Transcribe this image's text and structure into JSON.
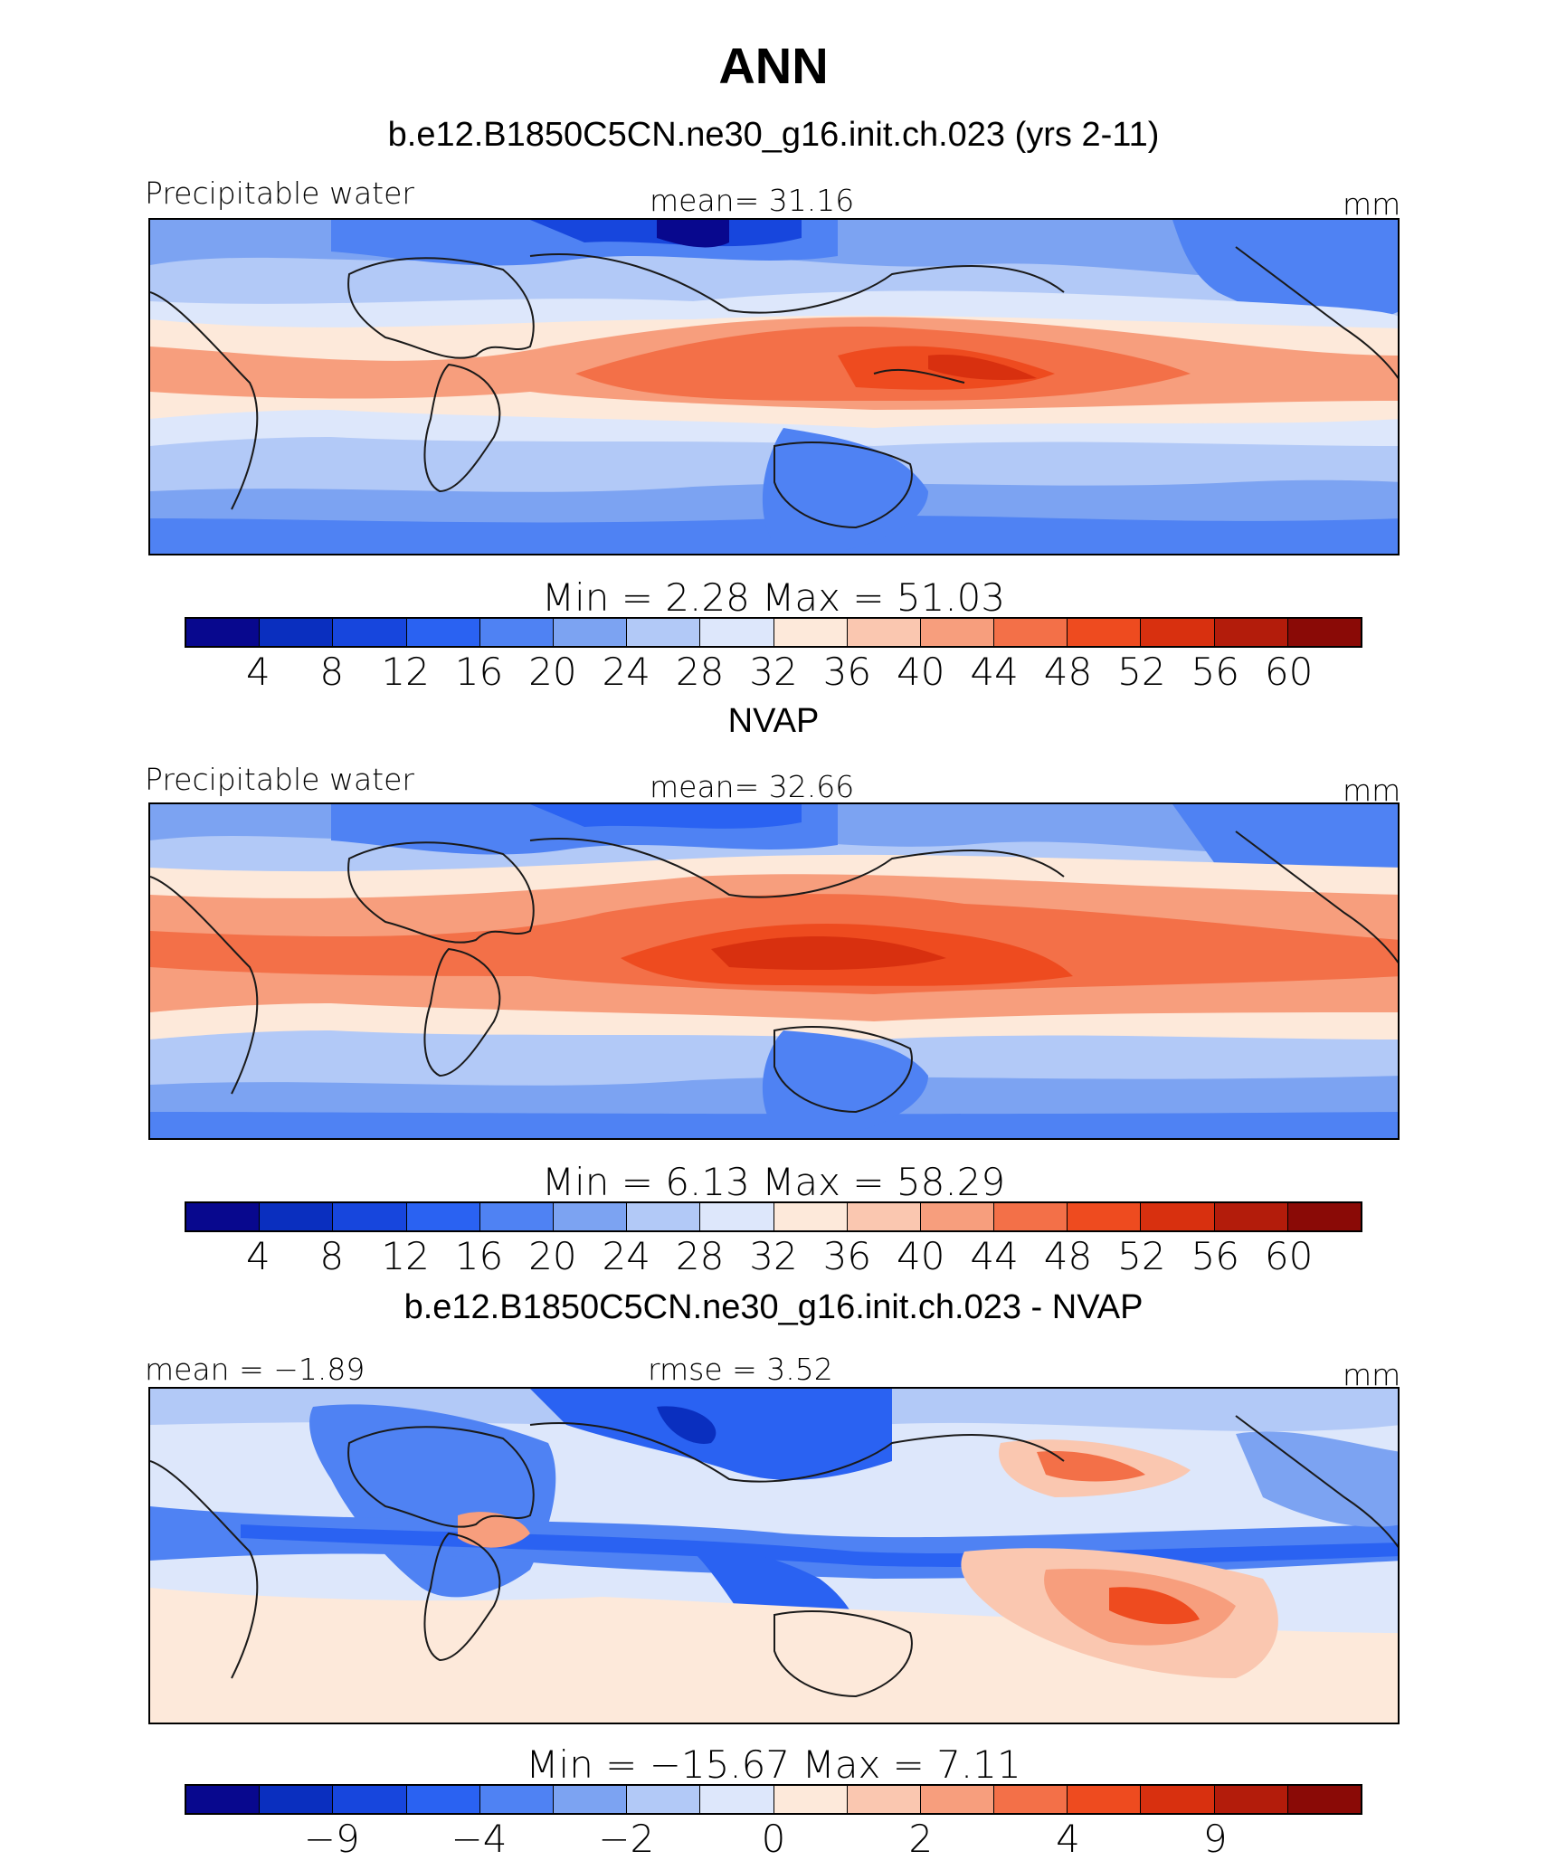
{
  "figure": {
    "title": "ANN"
  },
  "colors": {
    "seq": [
      "#08088e",
      "#0a2fbf",
      "#1746dd",
      "#2a62f2",
      "#4f82f3",
      "#7ca3f2",
      "#b2c9f7",
      "#dde7fb",
      "#fde9da",
      "#fac7b0",
      "#f79e7d",
      "#f37048",
      "#ee4b1f",
      "#d8300f",
      "#b31c0b",
      "#8a0a06"
    ],
    "coast": "#1a1a1a"
  },
  "chart_data": [
    {
      "type": "heatmap",
      "title": "b.e12.B1850C5CN.ne30_g16.init.ch.023 (yrs 2-11)",
      "variable": "Precipitable water",
      "mean_text": "mean=   31.16",
      "units": "mm",
      "min_max_text": "Min  =     2.28  Max  =    51.03",
      "min": 2.28,
      "max": 51.03,
      "mean": 31.16,
      "levels": [
        "4",
        "8",
        "12",
        "16",
        "20",
        "24",
        "28",
        "32",
        "36",
        "40",
        "44",
        "48",
        "52",
        "56",
        "60"
      ]
    },
    {
      "type": "heatmap",
      "title": "NVAP",
      "variable": "Precipitable water",
      "mean_text": "mean=   32.66",
      "units": "mm",
      "min_max_text": "Min  =     6.13  Max  =    58.29",
      "min": 6.13,
      "max": 58.29,
      "mean": 32.66,
      "levels": [
        "4",
        "8",
        "12",
        "16",
        "20",
        "24",
        "28",
        "32",
        "36",
        "40",
        "44",
        "48",
        "52",
        "56",
        "60"
      ]
    },
    {
      "type": "heatmap",
      "title": "b.e12.B1850C5CN.ne30_g16.init.ch.023 - NVAP",
      "mean_text": "mean  =   −1.89",
      "rmse_text": "rmse  =     3.52",
      "units": "mm",
      "min_max_text": "Min  =  −15.67  Max  =     7.11",
      "min": -15.67,
      "max": 7.11,
      "mean": -1.89,
      "rmse": 3.52,
      "levels": [
        "−9",
        "",
        "−4",
        "",
        "−2",
        "",
        "0",
        "",
        "2",
        "",
        "4",
        "",
        "9"
      ]
    }
  ]
}
